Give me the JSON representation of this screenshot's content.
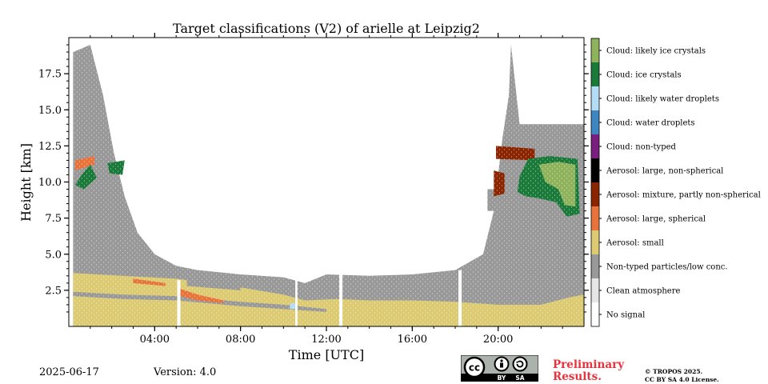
{
  "chart_data": {
    "type": "heatmap",
    "title": "Target classifications (V2) of arielle at Leipzig2",
    "xlabel": "Time [UTC]",
    "ylabel": "Height [km]",
    "xlim": [
      0,
      24
    ],
    "ylim": [
      0,
      20
    ],
    "x_ticks": [
      {
        "value": 4,
        "label": "04:00"
      },
      {
        "value": 8,
        "label": "08:00"
      },
      {
        "value": 12,
        "label": "12:00"
      },
      {
        "value": 16,
        "label": "16:00"
      },
      {
        "value": 20,
        "label": "20:00"
      }
    ],
    "y_ticks": [
      {
        "value": 2.5,
        "label": "2.5"
      },
      {
        "value": 5,
        "label": "5.0"
      },
      {
        "value": 7.5,
        "label": "7.5"
      },
      {
        "value": 10,
        "label": "10.0"
      },
      {
        "value": 12.5,
        "label": "12.5"
      },
      {
        "value": 15,
        "label": "15.0"
      },
      {
        "value": 17.5,
        "label": "17.5"
      }
    ],
    "legend": [
      {
        "label": "Cloud: likely ice crystals",
        "color": "#8fb35d"
      },
      {
        "label": "Cloud: ice crystals",
        "color": "#1a7a3a"
      },
      {
        "label": "Cloud: likely water droplets",
        "color": "#b4dcf5"
      },
      {
        "label": "Cloud: water droplets",
        "color": "#3d86c2"
      },
      {
        "label": "Cloud: non-typed",
        "color": "#7a1f7f"
      },
      {
        "label": "Aerosol: large, non-spherical",
        "color": "#000000"
      },
      {
        "label": "Aerosol: mixture, partly non-spherical",
        "color": "#8b2500"
      },
      {
        "label": "Aerosol: large, spherical",
        "color": "#e8743b"
      },
      {
        "label": "Aerosol: small",
        "color": "#dccb72"
      },
      {
        "label": "Non-typed particles/low conc.",
        "color": "#999999"
      },
      {
        "label": "Clean atmosphere",
        "color": "#e6e6e6"
      },
      {
        "label": "No signal",
        "color": "#ffffff"
      }
    ],
    "regions": [
      {
        "class": "Non-typed particles/low conc.",
        "points": [
          [
            0.2,
            0
          ],
          [
            0.2,
            19
          ],
          [
            1.0,
            19.5
          ],
          [
            1.6,
            16
          ],
          [
            2.1,
            12
          ],
          [
            2.6,
            9
          ],
          [
            3.2,
            6.5
          ],
          [
            4.0,
            5
          ],
          [
            5.0,
            4.2
          ],
          [
            6.0,
            3.9
          ],
          [
            8.0,
            3.6
          ],
          [
            10.0,
            3.4
          ],
          [
            11.0,
            3.0
          ],
          [
            12.0,
            3.6
          ],
          [
            14.0,
            3.5
          ],
          [
            16.0,
            3.6
          ],
          [
            18.0,
            3.9
          ],
          [
            19.3,
            5
          ],
          [
            19.8,
            8
          ],
          [
            20.2,
            13
          ],
          [
            20.5,
            16
          ],
          [
            20.6,
            19.5
          ],
          [
            21.0,
            14
          ],
          [
            22.5,
            14
          ],
          [
            23.3,
            14
          ],
          [
            24,
            14
          ],
          [
            24,
            0
          ]
        ]
      },
      {
        "class": "Aerosol: small",
        "points": [
          [
            0.2,
            0
          ],
          [
            0.2,
            3.7
          ],
          [
            2.5,
            3.5
          ],
          [
            5.0,
            3.3
          ],
          [
            8.0,
            2.7
          ],
          [
            10.0,
            2.2
          ],
          [
            11.0,
            1.8
          ],
          [
            12.5,
            1.9
          ],
          [
            14.0,
            1.8
          ],
          [
            16.0,
            1.8
          ],
          [
            18.0,
            1.7
          ],
          [
            20.0,
            1.5
          ],
          [
            22.0,
            1.5
          ],
          [
            23.3,
            2.0
          ],
          [
            24,
            2.2
          ],
          [
            24,
            0
          ]
        ]
      },
      {
        "class": "Non-typed particles/low conc.",
        "points": [
          [
            0.2,
            2.1
          ],
          [
            2.5,
            1.9
          ],
          [
            5.0,
            1.8
          ],
          [
            8.0,
            1.4
          ],
          [
            10.0,
            1.2
          ],
          [
            12.0,
            1.0
          ],
          [
            12.0,
            1.2
          ],
          [
            10.0,
            1.5
          ],
          [
            8.0,
            1.7
          ],
          [
            5.0,
            2.1
          ],
          [
            2.5,
            2.2
          ],
          [
            0.2,
            2.4
          ]
        ]
      },
      {
        "class": "Non-typed particles/low conc.",
        "points": [
          [
            5.5,
            3.2
          ],
          [
            8.0,
            2.8
          ],
          [
            8.0,
            2.5
          ],
          [
            5.5,
            2.8
          ]
        ]
      },
      {
        "class": "Aerosol: large, spherical",
        "points": [
          [
            5.2,
            2.6
          ],
          [
            6.0,
            2.2
          ],
          [
            7.2,
            1.8
          ],
          [
            7.2,
            1.6
          ],
          [
            6.0,
            1.8
          ],
          [
            5.2,
            2.1
          ]
        ]
      },
      {
        "class": "Aerosol: large, spherical",
        "points": [
          [
            3.0,
            3.3
          ],
          [
            4.5,
            3.0
          ],
          [
            4.5,
            2.8
          ],
          [
            3.0,
            3.0
          ]
        ]
      },
      {
        "class": "Aerosol: large, spherical",
        "points": [
          [
            0.3,
            11.5
          ],
          [
            1.2,
            11.8
          ],
          [
            1.2,
            11.2
          ],
          [
            0.3,
            10.8
          ]
        ]
      },
      {
        "class": "Non-typed particles/low conc.",
        "points": [
          [
            19.5,
            9.5
          ],
          [
            24,
            9.5
          ],
          [
            24,
            8
          ],
          [
            19.5,
            8
          ]
        ]
      },
      {
        "class": "Cloud: ice crystals",
        "points": [
          [
            0.3,
            9.8
          ],
          [
            0.6,
            10.5
          ],
          [
            1.0,
            11.2
          ],
          [
            1.3,
            10.3
          ],
          [
            0.7,
            9.5
          ]
        ]
      },
      {
        "class": "Cloud: ice crystals",
        "points": [
          [
            1.8,
            11.3
          ],
          [
            2.6,
            11.5
          ],
          [
            2.5,
            10.5
          ],
          [
            1.9,
            10.6
          ]
        ]
      },
      {
        "class": "Aerosol: mixture, partly non-spherical",
        "points": [
          [
            19.9,
            12.5
          ],
          [
            21.7,
            12.3
          ],
          [
            21.7,
            11.5
          ],
          [
            19.9,
            11.6
          ]
        ]
      },
      {
        "class": "Aerosol: mixture, partly non-spherical",
        "points": [
          [
            19.8,
            10.8
          ],
          [
            20.3,
            10.6
          ],
          [
            20.3,
            9.2
          ],
          [
            19.8,
            9.0
          ]
        ]
      },
      {
        "class": "Cloud: ice crystals",
        "points": [
          [
            21.4,
            11.6
          ],
          [
            22.4,
            11.8
          ],
          [
            23.7,
            11.6
          ],
          [
            23.8,
            7.8
          ],
          [
            23.2,
            7.6
          ],
          [
            22.7,
            8.6
          ],
          [
            21.8,
            8.9
          ],
          [
            21.3,
            9.0
          ],
          [
            20.9,
            9.3
          ],
          [
            21.0,
            10.4
          ]
        ]
      },
      {
        "class": "Cloud: likely ice crystals",
        "points": [
          [
            21.9,
            11.2
          ],
          [
            22.8,
            11.4
          ],
          [
            23.6,
            11.2
          ],
          [
            23.6,
            8.3
          ],
          [
            23.1,
            8.4
          ],
          [
            22.8,
            9.5
          ],
          [
            22.2,
            10.0
          ]
        ]
      },
      {
        "class": "Cloud: likely water droplets",
        "points": [
          [
            10.3,
            1.6
          ],
          [
            10.6,
            1.6
          ],
          [
            10.6,
            1.2
          ],
          [
            10.3,
            1.2
          ]
        ]
      },
      {
        "class": "No signal",
        "points": [
          [
            5.05,
            0
          ],
          [
            5.05,
            3.2
          ],
          [
            5.2,
            3.2
          ],
          [
            5.2,
            0
          ]
        ]
      },
      {
        "class": "No signal",
        "points": [
          [
            12.6,
            0
          ],
          [
            12.6,
            3.6
          ],
          [
            12.75,
            3.6
          ],
          [
            12.75,
            0
          ]
        ]
      },
      {
        "class": "No signal",
        "points": [
          [
            18.15,
            0
          ],
          [
            18.15,
            3.9
          ],
          [
            18.3,
            3.9
          ],
          [
            18.3,
            0
          ]
        ]
      },
      {
        "class": "No signal",
        "points": [
          [
            10.55,
            0
          ],
          [
            10.55,
            3.4
          ],
          [
            10.65,
            3.4
          ],
          [
            10.65,
            0
          ]
        ]
      }
    ]
  },
  "footer": {
    "date": "2025-06-17",
    "version": "Version: 4.0",
    "preliminary_line1": "Preliminary",
    "preliminary_line2": "Results.",
    "copyright_line1": "© TROPOS 2025.",
    "copyright_line2": "CC BY SA 4.0 License.",
    "license_badge": {
      "text_cc": "cc",
      "text_by": "BY",
      "text_sa": "SA",
      "icons": [
        "cc-icon",
        "attribution-icon",
        "share-alike-icon"
      ]
    }
  },
  "colors": {
    "preliminary": "#e8323c",
    "badge_bg": "#abb1ab",
    "badge_bar": "#000000"
  }
}
